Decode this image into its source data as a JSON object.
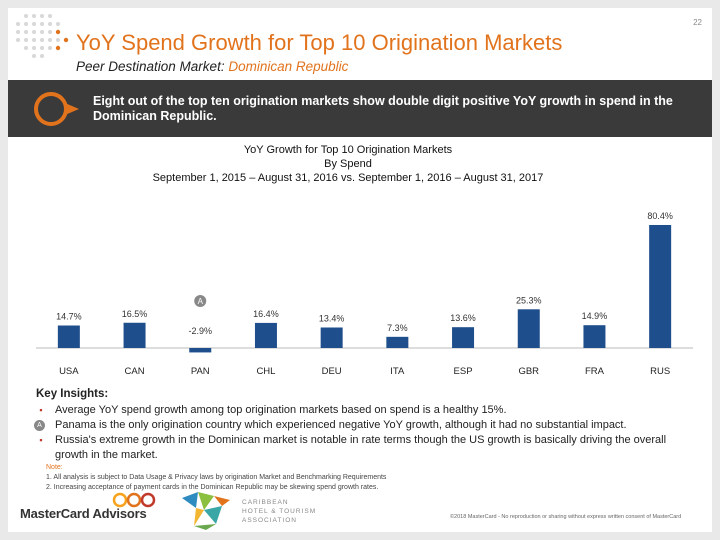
{
  "page_number": "22",
  "title": "YoY Spend Growth for Top 10 Origination Markets",
  "subtitle_label": "Peer Destination Market: ",
  "subtitle_country": "Dominican Republic",
  "banner_text": "Eight out of the top ten origination markets show double digit positive YoY growth in spend in the Dominican Republic.",
  "chart_heading": {
    "line1": "YoY Growth for Top 10 Origination Markets",
    "line2": "By Spend",
    "line3": "September 1, 2015 – August 31, 2016 vs. September 1, 2016 – August 31, 2017"
  },
  "chart_data": {
    "type": "bar",
    "categories": [
      "USA",
      "CAN",
      "PAN",
      "CHL",
      "DEU",
      "ITA",
      "ESP",
      "GBR",
      "FRA",
      "RUS"
    ],
    "values": [
      14.7,
      16.5,
      -2.9,
      16.4,
      13.4,
      7.3,
      13.6,
      25.3,
      14.9,
      80.4
    ],
    "data_labels": [
      "14.7%",
      "16.5%",
      "-2.9%",
      "16.4%",
      "13.4%",
      "7.3%",
      "13.6%",
      "25.3%",
      "14.9%",
      "80.4%"
    ],
    "highlight_index": 2,
    "highlight_marker": "A",
    "bar_color": "#1f4e8c",
    "title": "YoY Growth for Top 10 Origination Markets",
    "xlabel": "",
    "ylabel": "",
    "ylim": [
      -5,
      85
    ]
  },
  "insights": {
    "heading": "Key Insights:",
    "items": [
      {
        "marker": "▪",
        "text": "Average YoY spend growth among top origination markets based on spend is a healthy 15%."
      },
      {
        "marker": "A",
        "text": "Panama is the only origination country which experienced negative YoY growth, although it had no substantial impact."
      },
      {
        "marker": "▪",
        "text": "Russia's extreme growth in the Dominican market is notable in rate terms though the US growth is basically driving the overall growth in the market."
      }
    ]
  },
  "notes": {
    "label": "Note:",
    "lines": [
      "1. All analysis is subject to Data Usage & Privacy laws by origination Market and Benchmarking Requirements",
      "2. Increasing acceptance of payment cards in the Dominican Republic may be skewing spend growth rates."
    ]
  },
  "footer": {
    "logo": "MasterCard Advisors",
    "assoc_lines": [
      "CARIBBEAN",
      "HOTEL & TOURISM",
      "ASSOCIATION"
    ],
    "copyright": "©2018 MasterCard - No reproduction or sharing without express written consent of MasterCard"
  },
  "colors": {
    "accent": "#e2731d",
    "banner": "#3a3a3a",
    "bar": "#1f4e8c"
  }
}
